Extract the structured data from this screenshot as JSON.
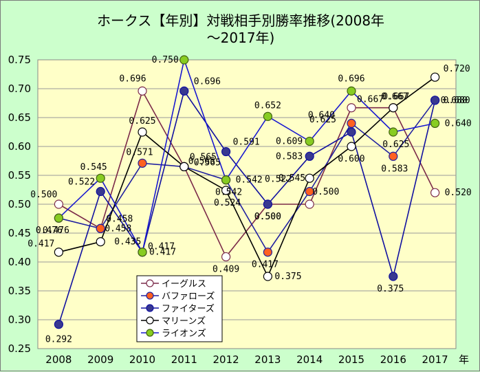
{
  "chart_data": {
    "type": "line",
    "title_line1": "ホークス【年別】対戦相手別勝率推移(2008年",
    "title_line2": "～2017年)",
    "x": [
      "2008",
      "2009",
      "2010",
      "2011",
      "2012",
      "2013",
      "2014",
      "2015",
      "2016",
      "2017"
    ],
    "xunit": "年",
    "ylim": [
      0.25,
      0.75
    ],
    "yticks": [
      "0.25",
      "0.30",
      "0.35",
      "0.40",
      "0.45",
      "0.50",
      "0.55",
      "0.60",
      "0.65",
      "0.70",
      "0.75"
    ],
    "grid": "horizontal",
    "legend_position": "bottom-left",
    "series": [
      {
        "name": "イーグルス",
        "line_color": "#7a2848",
        "marker_color": "#ffffff",
        "marker_edge": "#7a2848",
        "values": [
          0.5,
          0.458,
          0.696,
          0.565,
          0.409,
          0.5,
          0.5,
          0.667,
          0.667,
          0.52
        ],
        "labels": [
          "0.500",
          "0.458",
          "0.696",
          "0.565",
          "0.409",
          "0.500",
          "0.500",
          "0.667",
          "0.667",
          "0.520"
        ]
      },
      {
        "name": "バファローズ",
        "line_color": "#2020a0",
        "marker_color": "#ff6020",
        "marker_edge": "#2020a0",
        "values": [
          0.476,
          0.458,
          0.571,
          0.565,
          0.542,
          0.417,
          0.522,
          0.64,
          0.583,
          0.68
        ],
        "labels": [
          "0.476",
          "0.458",
          "0.571",
          "0.565",
          "0.542",
          "0.417",
          "0.522",
          "0.640",
          "0.583",
          "0.680"
        ]
      },
      {
        "name": "ファイターズ",
        "line_color": "#1010a0",
        "marker_color": "#383890",
        "marker_edge": "#1010a0",
        "values": [
          0.292,
          0.522,
          0.417,
          0.696,
          0.591,
          0.5,
          0.583,
          0.625,
          0.375,
          0.68
        ],
        "labels": [
          "0.292",
          "0.522",
          "0.417",
          "0.696",
          "0.591",
          "0.500",
          "0.583",
          "0.625",
          "0.375",
          "0.680"
        ]
      },
      {
        "name": "マリーンズ",
        "line_color": "#000000",
        "marker_color": "#ffffff",
        "marker_edge": "#000000",
        "values": [
          0.417,
          0.435,
          0.625,
          0.565,
          0.524,
          0.375,
          0.545,
          0.6,
          0.667,
          0.72
        ],
        "labels": [
          "0.417",
          "0.435",
          "0.625",
          "0.565",
          "0.524",
          "0.375",
          "0.545",
          "0.600",
          "0.667",
          "0.720"
        ]
      },
      {
        "name": "ライオンズ",
        "line_color": "#1818d0",
        "marker_color": "#88cc22",
        "marker_edge": "#406010",
        "values": [
          0.476,
          0.545,
          0.417,
          0.75,
          0.542,
          0.652,
          0.609,
          0.696,
          0.625,
          0.64
        ],
        "labels": [
          "0.476",
          "0.545",
          "0.417",
          "0.750",
          "0.542",
          "0.652",
          "0.609",
          "0.696",
          "0.625",
          "0.640"
        ]
      }
    ]
  }
}
